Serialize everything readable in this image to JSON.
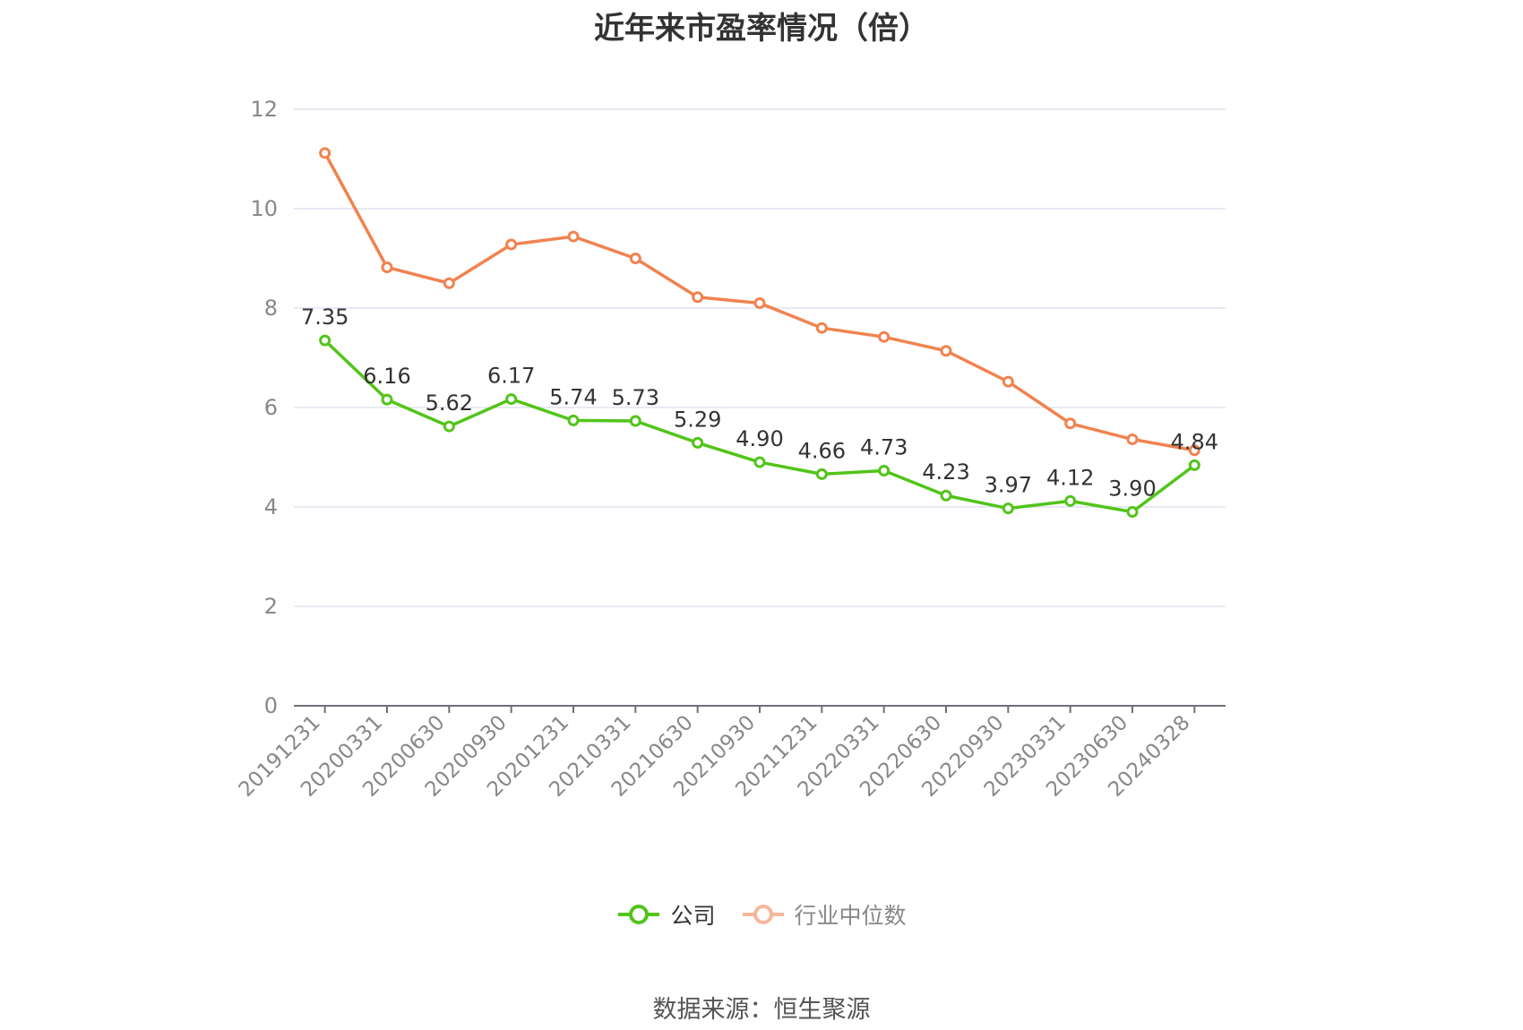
{
  "chart_data": {
    "type": "line",
    "title": "近年来市盈率情况（倍）",
    "categories": [
      "20191231",
      "20200331",
      "20200630",
      "20200930",
      "20201231",
      "20210331",
      "20210630",
      "20210930",
      "20211231",
      "20220331",
      "20220630",
      "20220930",
      "20230331",
      "20230630",
      "20240328"
    ],
    "series": [
      {
        "name": "公司",
        "color": "#52c41a",
        "values": [
          7.35,
          6.16,
          5.62,
          6.17,
          5.74,
          5.73,
          5.29,
          4.9,
          4.66,
          4.73,
          4.23,
          3.97,
          4.12,
          3.9,
          4.84
        ],
        "labels": [
          "7.35",
          "6.16",
          "5.62",
          "6.17",
          "5.74",
          "5.73",
          "5.29",
          "4.90",
          "4.66",
          "4.73",
          "4.23",
          "3.97",
          "4.12",
          "3.90",
          "4.84"
        ]
      },
      {
        "name": "行业中位数",
        "color": "#f0834f",
        "values": [
          11.12,
          8.82,
          8.5,
          9.28,
          9.44,
          9.0,
          8.22,
          8.1,
          7.6,
          7.42,
          7.14,
          6.52,
          5.68,
          5.36,
          5.14
        ]
      }
    ],
    "yticks": [
      "0",
      "2",
      "4",
      "6",
      "8",
      "10",
      "12"
    ],
    "ylim": [
      0,
      12
    ],
    "xlabel": "",
    "ylabel": "",
    "grid": true,
    "legend_position": "bottom"
  },
  "legend": {
    "company": "公司",
    "industry": "行业中位数"
  },
  "source": "数据来源：恒生聚源"
}
